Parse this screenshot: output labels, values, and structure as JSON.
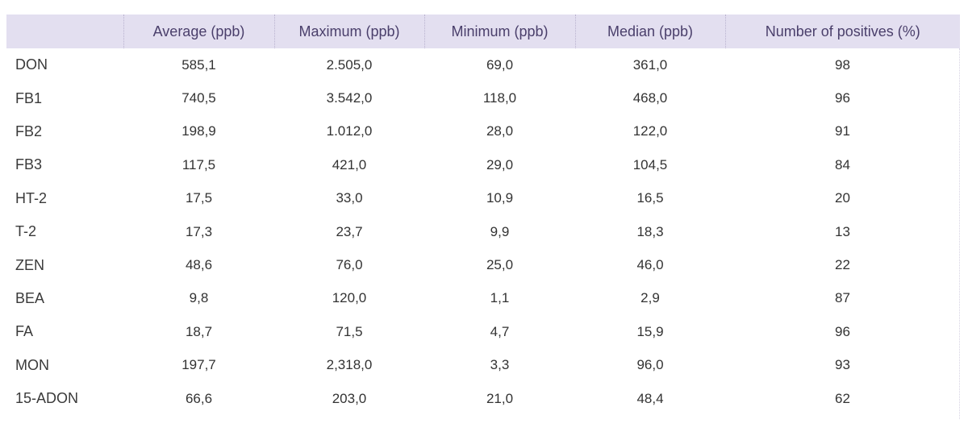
{
  "table": {
    "headers": [
      "",
      "Average (ppb)",
      "Maximum (ppb)",
      "Minimum (ppb)",
      "Median (ppb)",
      "Number of positives (%)"
    ],
    "rows": [
      [
        "DON",
        "585,1",
        "2.505,0",
        "69,0",
        "361,0",
        "98"
      ],
      [
        "FB1",
        "740,5",
        "3.542,0",
        "118,0",
        "468,0",
        "96"
      ],
      [
        "FB2",
        "198,9",
        "1.012,0",
        "28,0",
        "122,0",
        "91"
      ],
      [
        "FB3",
        "117,5",
        "421,0",
        "29,0",
        "104,5",
        "84"
      ],
      [
        "HT-2",
        "17,5",
        "33,0",
        "10,9",
        "16,5",
        "20"
      ],
      [
        "T-2",
        "17,3",
        "23,7",
        "9,9",
        "18,3",
        "13"
      ],
      [
        "ZEN",
        "48,6",
        "76,0",
        "25,0",
        "46,0",
        "22"
      ],
      [
        "BEA",
        "9,8",
        "120,0",
        "1,1",
        "2,9",
        "87"
      ],
      [
        "FA",
        "18,7",
        "71,5",
        "4,7",
        "15,9",
        "96"
      ],
      [
        "MON",
        "197,7",
        "2,318,0",
        "3,3",
        "96,0",
        "93"
      ],
      [
        "15-ADON",
        "66,6",
        "203,0",
        "21,0",
        "48,4",
        "62"
      ]
    ]
  },
  "colors": {
    "header_bg": "#e3dff0",
    "header_text": "#4a3f6b",
    "body_text": "#333333"
  }
}
